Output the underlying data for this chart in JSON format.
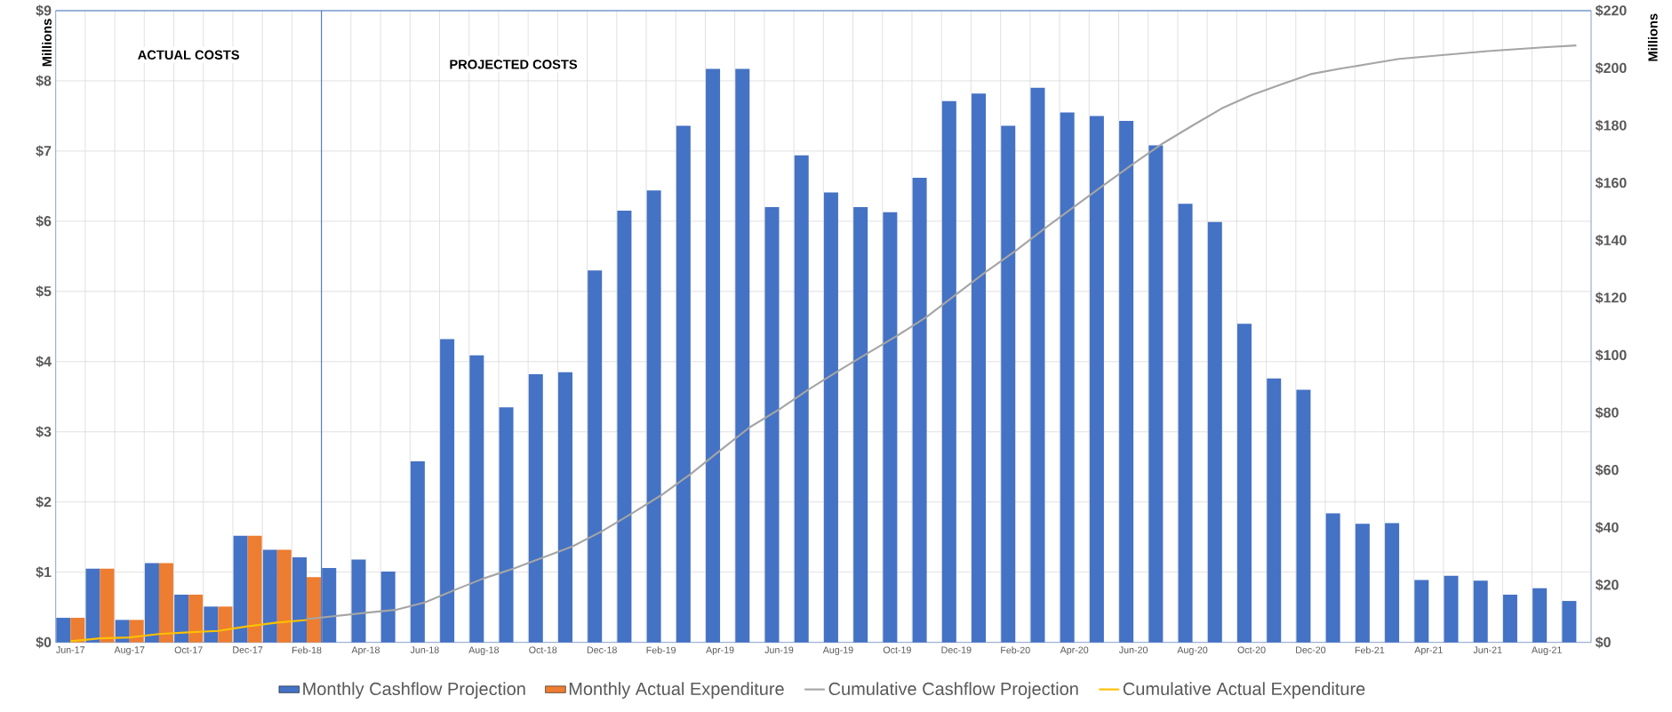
{
  "chart_data": {
    "type": "bar",
    "categories": [
      "Jun-17",
      null,
      "Aug-17",
      null,
      "Oct-17",
      null,
      "Dec-17",
      null,
      "Feb-18",
      null,
      "Apr-18",
      null,
      "Jun-18",
      null,
      "Aug-18",
      null,
      "Oct-18",
      null,
      "Dec-18",
      null,
      "Feb-19",
      null,
      "Apr-19",
      null,
      "Jun-19",
      null,
      "Aug-19",
      null,
      "Oct-19",
      null,
      "Dec-19",
      null,
      "Feb-20",
      null,
      "Apr-20",
      null,
      "Jun-20",
      null,
      "Aug-20",
      null,
      "Oct-20",
      null,
      "Dec-20",
      null,
      "Feb-21",
      null,
      "Apr-21",
      null,
      "Jun-21",
      null,
      "Aug-21",
      null
    ],
    "series": [
      {
        "name": "Monthly Cashflow Projection",
        "color": "#4472c4",
        "values": [
          0.35,
          1.05,
          0.32,
          1.13,
          0.68,
          0.51,
          1.52,
          1.32,
          1.21,
          1.06,
          1.18,
          1.01,
          2.58,
          4.32,
          4.09,
          3.35,
          3.82,
          3.85,
          5.3,
          6.15,
          6.44,
          7.36,
          8.17,
          8.17,
          6.2,
          6.94,
          6.41,
          6.2,
          6.13,
          6.62,
          7.71,
          7.82,
          7.36,
          7.9,
          7.55,
          7.5,
          7.43,
          7.08,
          6.25,
          5.99,
          4.54,
          3.76,
          3.6,
          1.84,
          1.69,
          1.7,
          0.89,
          0.95,
          0.88,
          0.68,
          0.77,
          0.59
        ]
      },
      {
        "name": "Monthly Actual Expenditure",
        "color": "#ed7d31",
        "values": [
          0.35,
          1.05,
          0.32,
          1.13,
          0.68,
          0.51,
          1.52,
          1.32,
          0.93,
          null,
          null,
          null,
          null,
          null,
          null,
          null,
          null,
          null,
          null,
          null,
          null,
          null,
          null,
          null,
          null,
          null,
          null,
          null,
          null,
          null,
          null,
          null,
          null,
          null,
          null,
          null,
          null,
          null,
          null,
          null,
          null,
          null,
          null,
          null,
          null,
          null,
          null,
          null,
          null,
          null,
          null,
          null
        ]
      },
      {
        "name": "Cumulative Cashflow Projection",
        "type": "line",
        "axis": "y2",
        "color": "#a5a5a5",
        "values": [
          null,
          null,
          null,
          null,
          null,
          null,
          null,
          null,
          8.1,
          9.2,
          10.3,
          11.3,
          13.9,
          18.2,
          22.3,
          25.7,
          29.5,
          33.4,
          38.7,
          44.8,
          51.2,
          58.6,
          66.8,
          74.9,
          81.1,
          88.1,
          94.5,
          100.7,
          106.8,
          113.4,
          121.2,
          129,
          136.3,
          144.2,
          151.8,
          159.3,
          166.7,
          173.8,
          180,
          186,
          190.6,
          194.3,
          197.9,
          199.8,
          201.5,
          203.2,
          204.1,
          205,
          205.9,
          206.6,
          207.3,
          207.9
        ]
      },
      {
        "name": "Cumulative Actual Expenditure",
        "type": "line",
        "axis": "y2",
        "color": "#ffc000",
        "values": [
          0.4,
          1.4,
          1.7,
          2.9,
          3.5,
          4,
          5.6,
          6.9,
          7.8,
          null,
          null,
          null,
          null,
          null,
          null,
          null,
          null,
          null,
          null,
          null,
          null,
          null,
          null,
          null,
          null,
          null,
          null,
          null,
          null,
          null,
          null,
          null,
          null,
          null,
          null,
          null,
          null,
          null,
          null,
          null,
          null,
          null,
          null,
          null,
          null,
          null,
          null,
          null,
          null,
          null,
          null,
          null
        ]
      }
    ],
    "ylabel": "Millions",
    "y2label": "Millions",
    "ylim": [
      0,
      9
    ],
    "yticks": [
      {
        "value": 0,
        "label": "$0"
      },
      {
        "value": 1,
        "label": "$1"
      },
      {
        "value": 2,
        "label": "$2"
      },
      {
        "value": 3,
        "label": "$3"
      },
      {
        "value": 4,
        "label": "$4"
      },
      {
        "value": 5,
        "label": "$5"
      },
      {
        "value": 6,
        "label": "$6"
      },
      {
        "value": 7,
        "label": "$7"
      },
      {
        "value": 8,
        "label": "$8"
      },
      {
        "value": 9,
        "label": "$9"
      }
    ],
    "y2lim": [
      0,
      220
    ],
    "y2ticks": [
      {
        "value": 0,
        "label": "$0"
      },
      {
        "value": 20,
        "label": "$20"
      },
      {
        "value": 40,
        "label": "$40"
      },
      {
        "value": 60,
        "label": "$60"
      },
      {
        "value": 80,
        "label": "$80"
      },
      {
        "value": 100,
        "label": "$100"
      },
      {
        "value": 120,
        "label": "$120"
      },
      {
        "value": 140,
        "label": "$140"
      },
      {
        "value": 160,
        "label": "$160"
      },
      {
        "value": 180,
        "label": "$180"
      },
      {
        "value": 200,
        "label": "$200"
      },
      {
        "value": 220,
        "label": "$220"
      }
    ],
    "annotations": [
      "ACTUAL COSTS",
      "PROJECTED COSTS"
    ],
    "grid": true,
    "legend": "bottom"
  }
}
